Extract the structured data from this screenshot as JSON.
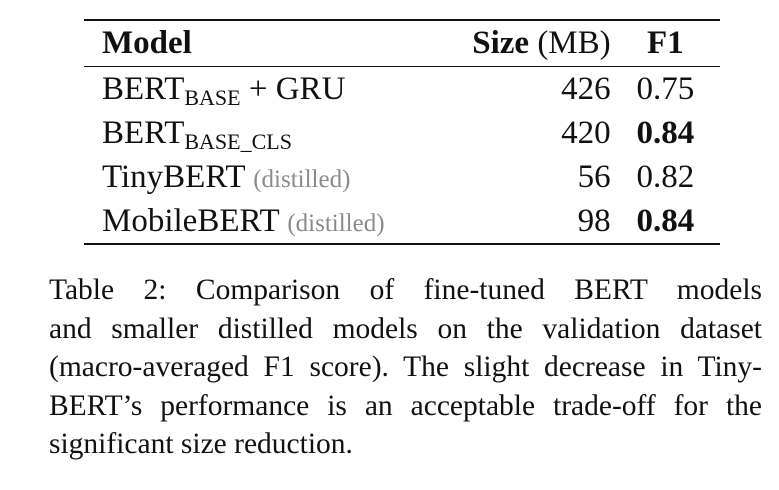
{
  "table": {
    "headers": {
      "model": "Model",
      "size_bold": "Size",
      "size_unit": " (MB)",
      "f1": "F1"
    },
    "rows": [
      {
        "model_main": "BERT",
        "model_sub": "BASE",
        "model_suffix": " + GRU",
        "note": "",
        "size": "426",
        "f1": "0.75",
        "f1_bold": false
      },
      {
        "model_main": "BERT",
        "model_sub": "BASE_CLS",
        "model_suffix": "",
        "note": "",
        "size": "420",
        "f1": "0.84",
        "f1_bold": true
      },
      {
        "model_main": "TinyBERT",
        "model_sub": "",
        "model_suffix": "",
        "note": "(distilled)",
        "size": "56",
        "f1": "0.82",
        "f1_bold": false
      },
      {
        "model_main": "MobileBERT",
        "model_sub": "",
        "model_suffix": "",
        "note": "(distilled)",
        "size": "98",
        "f1": "0.84",
        "f1_bold": true
      }
    ]
  },
  "caption": {
    "lines": [
      "Table 2:  Comparison of fine-tuned BERT models",
      "and smaller distilled models on the validation dataset",
      "(macro-averaged F1 score). The slight decrease in Tiny-",
      "BERT’s performance is an acceptable trade-off for the",
      "significant size reduction."
    ]
  }
}
